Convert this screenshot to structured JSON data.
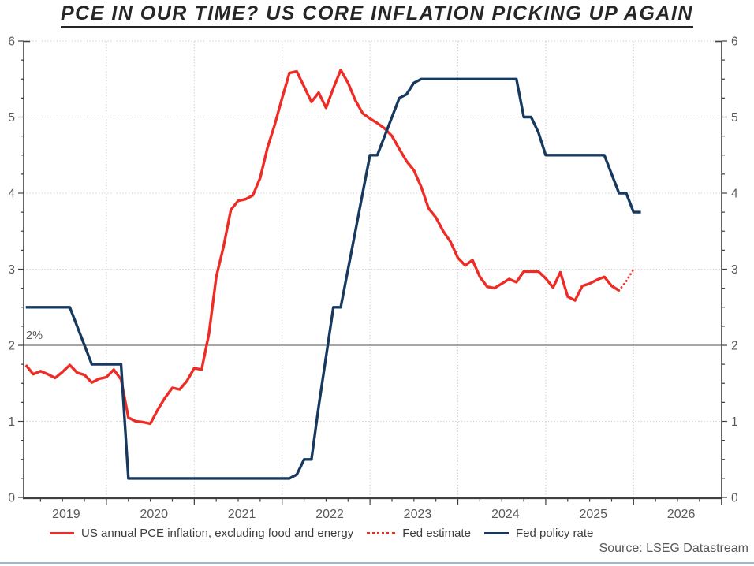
{
  "page": {
    "title": "PCE IN OUR TIME? US CORE INFLATION PICKING UP AGAIN",
    "source": "Source: LSEG Datastream"
  },
  "colors": {
    "pce_red": "#ee2c26",
    "fed_navy": "#17395f",
    "grid_dotted": "#c9c9c9",
    "target_gray": "#8a8a8a",
    "axis": "#404040",
    "tick_text": "#595959",
    "title_text": "#262626",
    "legend_text": "#3d3d3d",
    "bottom_rule": "#a3b7cb"
  },
  "chart_data": {
    "type": "line",
    "title": "PCE IN OUR TIME? US CORE INFLATION PICKING UP AGAIN",
    "x_start": "2019-02",
    "x_step": "1 month",
    "x_tick_years": [
      "2019",
      "2020",
      "2021",
      "2022",
      "2023",
      "2024",
      "2025",
      "2026"
    ],
    "y_ticks": [
      0,
      1,
      2,
      3,
      4,
      5,
      6
    ],
    "ylim": [
      0,
      6
    ],
    "y_minor_step": 0.25,
    "grid": "dotted horizontal at 1,3,4,5,6 and vertical at each January",
    "legend_position": "bottom",
    "target_line": {
      "value": 2,
      "label": "2%"
    },
    "series": [
      {
        "name": "US annual PCE inflation, excluding food and energy",
        "style": "solid",
        "color": "#ee2c26",
        "start_index": 0,
        "values": [
          1.74,
          1.62,
          1.66,
          1.62,
          1.57,
          1.65,
          1.74,
          1.64,
          1.61,
          1.51,
          1.56,
          1.58,
          1.68,
          1.55,
          1.05,
          1.0,
          0.99,
          0.97,
          1.15,
          1.31,
          1.44,
          1.42,
          1.53,
          1.7,
          1.68,
          2.15,
          2.9,
          3.3,
          3.78,
          3.9,
          3.92,
          3.97,
          4.2,
          4.6,
          4.9,
          5.25,
          5.58,
          5.6,
          5.4,
          5.2,
          5.32,
          5.12,
          5.38,
          5.62,
          5.45,
          5.22,
          5.05,
          4.98,
          4.92,
          4.85,
          4.75,
          4.58,
          4.42,
          4.3,
          4.08,
          3.8,
          3.68,
          3.5,
          3.36,
          3.15,
          3.05,
          3.12,
          2.9,
          2.77,
          2.75,
          2.81,
          2.87,
          2.83,
          2.97,
          2.97,
          2.97,
          2.88,
          2.76,
          2.96,
          2.64,
          2.59,
          2.78,
          2.81,
          2.86,
          2.9,
          2.78,
          2.72
        ]
      },
      {
        "name": "Fed estimate",
        "style": "dotted",
        "color": "#ee2c26",
        "start_index": 81,
        "values": [
          2.72,
          2.84,
          3.0
        ]
      },
      {
        "name": "Fed policy rate",
        "style": "solid",
        "color": "#17395f",
        "start_index": 0,
        "values": [
          2.5,
          2.5,
          2.5,
          2.5,
          2.5,
          2.5,
          2.5,
          2.25,
          2.0,
          1.75,
          1.75,
          1.75,
          1.75,
          1.75,
          0.25,
          0.25,
          0.25,
          0.25,
          0.25,
          0.25,
          0.25,
          0.25,
          0.25,
          0.25,
          0.25,
          0.25,
          0.25,
          0.25,
          0.25,
          0.25,
          0.25,
          0.25,
          0.25,
          0.25,
          0.25,
          0.25,
          0.25,
          0.3,
          0.5,
          0.5,
          1.2,
          1.85,
          2.5,
          2.5,
          3.0,
          3.5,
          4.0,
          4.5,
          4.5,
          4.75,
          5.0,
          5.25,
          5.3,
          5.45,
          5.5,
          5.5,
          5.5,
          5.5,
          5.5,
          5.5,
          5.5,
          5.5,
          5.5,
          5.5,
          5.5,
          5.5,
          5.5,
          5.5,
          5.0,
          5.0,
          4.8,
          4.5,
          4.5,
          4.5,
          4.5,
          4.5,
          4.5,
          4.5,
          4.5,
          4.5,
          4.25,
          4.0,
          4.0,
          3.75,
          3.75
        ]
      }
    ]
  }
}
